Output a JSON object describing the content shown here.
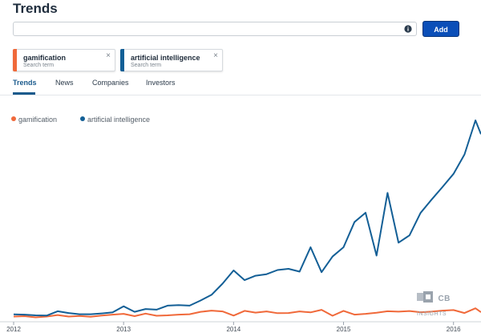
{
  "page": {
    "title": "Trends"
  },
  "search": {
    "value": "",
    "placeholder": "",
    "add_label": "Add"
  },
  "terms": [
    {
      "name": "gamification",
      "sub": "Search term",
      "color": "#f0693a"
    },
    {
      "name": "artificial intelligence",
      "sub": "Search term",
      "color": "#135f96"
    }
  ],
  "tabs": [
    {
      "label": "Trends",
      "active": true
    },
    {
      "label": "News",
      "active": false
    },
    {
      "label": "Companies",
      "active": false
    },
    {
      "label": "Investors",
      "active": false
    }
  ],
  "watermark": {
    "brand": "CB",
    "suffix": "INSIGHTS"
  },
  "chart_data": {
    "type": "line",
    "title": "",
    "xlabel": "",
    "ylabel": "",
    "x_ticks": [
      "2012",
      "2013",
      "2014",
      "2015",
      "2016"
    ],
    "legend_position": "top-left",
    "grid": false,
    "ylim": [
      0,
      100
    ],
    "x_range": [
      2012.0,
      2016.25
    ],
    "series": [
      {
        "name": "gamification",
        "color": "#f0693a",
        "x": [
          2012.0,
          2012.1,
          2012.2,
          2012.3,
          2012.4,
          2012.5,
          2012.6,
          2012.7,
          2012.8,
          2012.9,
          2013.0,
          2013.1,
          2013.2,
          2013.3,
          2013.4,
          2013.5,
          2013.6,
          2013.7,
          2013.8,
          2013.9,
          2014.0,
          2014.1,
          2014.2,
          2014.3,
          2014.4,
          2014.5,
          2014.6,
          2014.7,
          2014.8,
          2014.9,
          2015.0,
          2015.1,
          2015.2,
          2015.3,
          2015.4,
          2015.5,
          2015.6,
          2015.7,
          2015.8,
          2015.9,
          2016.0,
          2016.1,
          2016.2,
          2016.25
        ],
        "values": [
          1.0,
          1.2,
          0.6,
          1.0,
          1.8,
          1.0,
          1.3,
          0.9,
          1.5,
          2.0,
          2.4,
          1.2,
          2.5,
          1.4,
          1.6,
          2.0,
          2.2,
          3.4,
          4.0,
          3.6,
          1.5,
          3.9,
          3.0,
          3.6,
          2.7,
          2.8,
          3.6,
          3.1,
          4.4,
          1.4,
          3.9,
          2.0,
          2.4,
          2.9,
          3.7,
          3.5,
          3.8,
          3.2,
          3.5,
          4.0,
          4.3,
          2.8,
          5.2,
          3.2
        ]
      },
      {
        "name": "artificial intelligence",
        "color": "#135f96",
        "x": [
          2012.0,
          2012.1,
          2012.2,
          2012.3,
          2012.4,
          2012.5,
          2012.6,
          2012.7,
          2012.8,
          2012.9,
          2013.0,
          2013.1,
          2013.2,
          2013.3,
          2013.4,
          2013.5,
          2013.6,
          2013.7,
          2013.8,
          2013.9,
          2014.0,
          2014.1,
          2014.2,
          2014.3,
          2014.4,
          2014.5,
          2014.6,
          2014.7,
          2014.8,
          2014.9,
          2015.0,
          2015.1,
          2015.2,
          2015.3,
          2015.4,
          2015.5,
          2015.6,
          2015.7,
          2015.8,
          2015.9,
          2016.0,
          2016.1,
          2016.2,
          2016.25
        ],
        "values": [
          2.1,
          2.0,
          1.6,
          1.5,
          3.7,
          2.8,
          2.2,
          2.2,
          2.6,
          3.1,
          6.2,
          3.4,
          4.8,
          4.5,
          6.5,
          6.8,
          6.5,
          9.1,
          12.0,
          17.6,
          24.3,
          19.4,
          21.6,
          22.4,
          24.5,
          25.1,
          23.7,
          36.0,
          23.4,
          31.3,
          36.0,
          48.7,
          53.4,
          31.8,
          63.4,
          38.3,
          42.0,
          53.3,
          60.0,
          66.4,
          73.0,
          82.8,
          100.0,
          93.0
        ]
      }
    ]
  }
}
